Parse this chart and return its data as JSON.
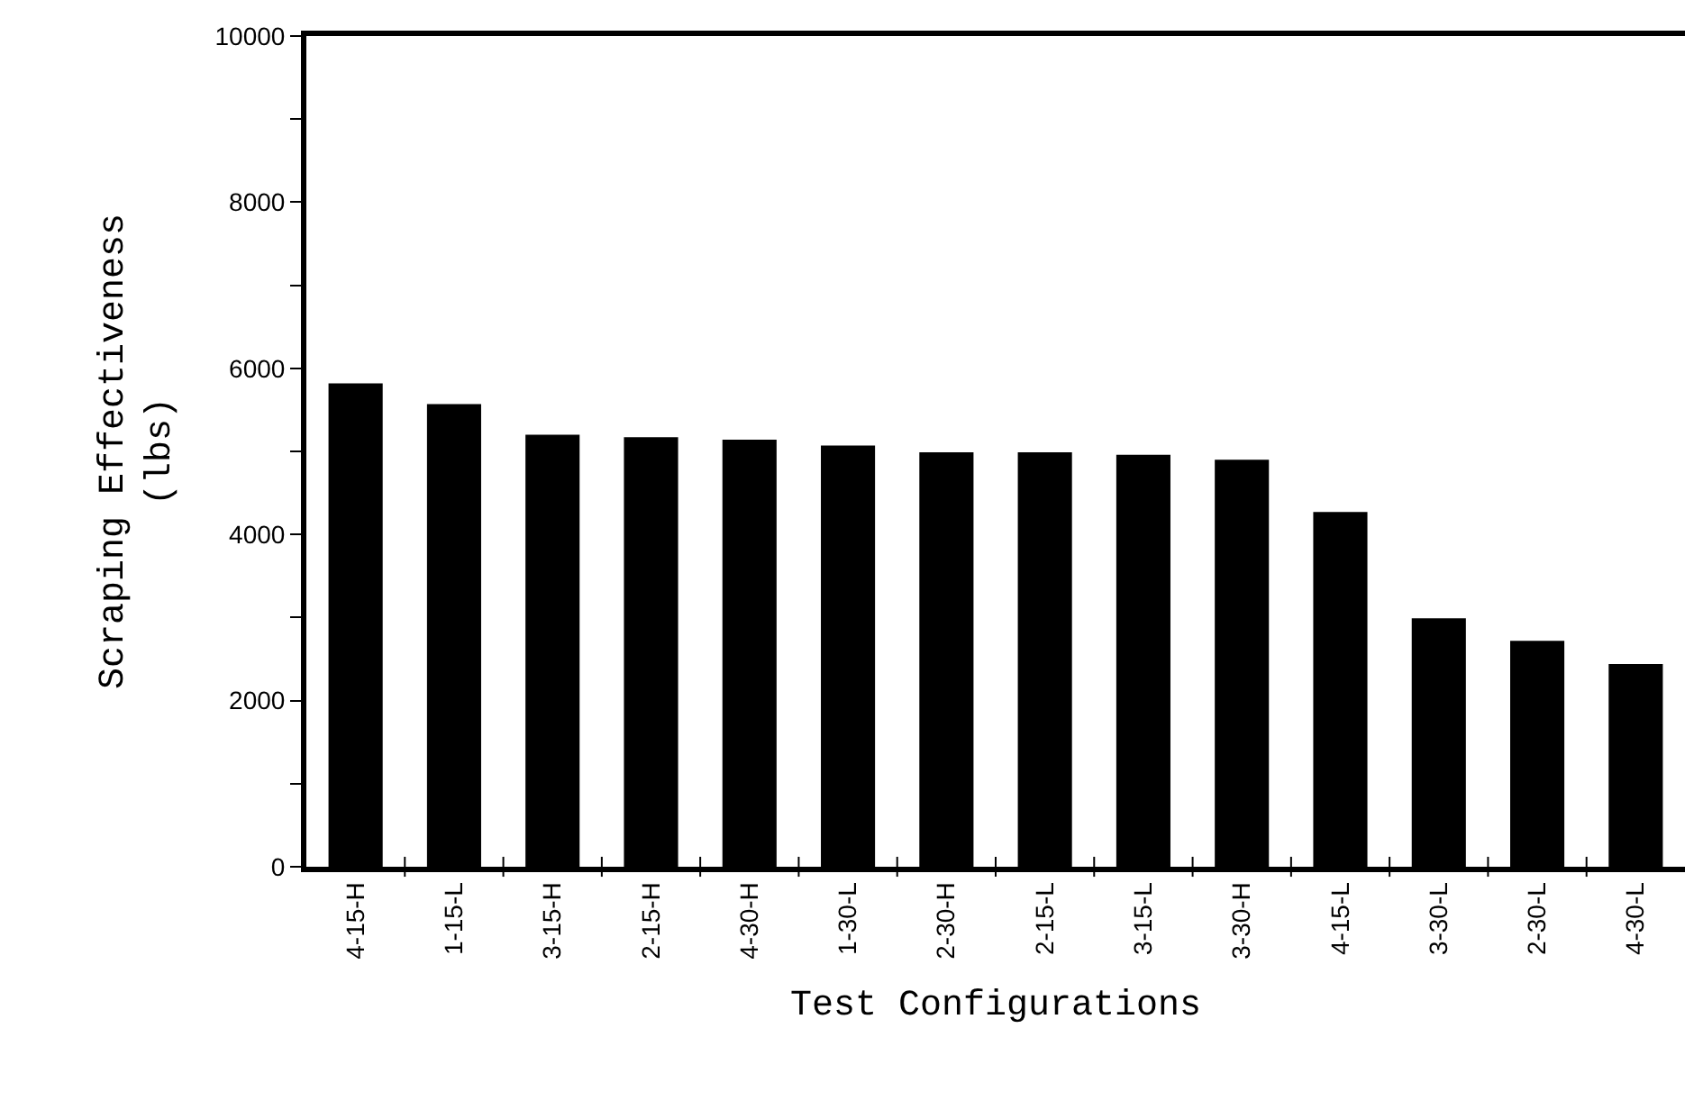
{
  "chart_data": {
    "type": "bar",
    "xlabel": "Test Configurations",
    "ylabel": "Scraping Effectiveness\n(lbs)",
    "categories": [
      "4-15-H",
      "1-15-L",
      "3-15-H",
      "2-15-H",
      "4-30-H",
      "1-30-L",
      "2-30-H",
      "2-15-L",
      "3-15-L",
      "3-30-H",
      "4-15-L",
      "3-30-L",
      "2-30-L",
      "4-30-L"
    ],
    "values": [
      5820,
      5570,
      5200,
      5170,
      5140,
      5070,
      4990,
      4990,
      4960,
      4900,
      4270,
      2990,
      2720,
      2440
    ],
    "color": "#000000",
    "ylim": [
      0,
      10000
    ],
    "yticks": [
      0,
      {
        "value": 1000,
        "label": null
      },
      2000,
      {
        "value": 3000,
        "label": null
      },
      4000,
      {
        "value": 5000,
        "label": null
      },
      6000,
      {
        "value": 7000,
        "label": null
      },
      8000,
      {
        "value": 9000,
        "label": null
      },
      10000
    ]
  }
}
